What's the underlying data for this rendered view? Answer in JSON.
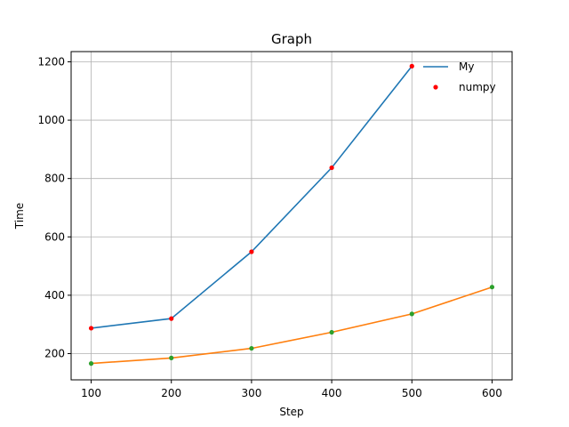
{
  "chart_data": {
    "type": "line",
    "title": "Graph",
    "xlabel": "Step",
    "ylabel": "Time",
    "xlim": [
      75,
      625
    ],
    "ylim": [
      110,
      1235
    ],
    "xticks": [
      100,
      200,
      300,
      400,
      500,
      600
    ],
    "yticks": [
      200,
      400,
      600,
      800,
      1000,
      1200
    ],
    "grid": true,
    "legend_position": "top-right",
    "legend": [
      {
        "label": "My",
        "marker": "line",
        "color": "#1f77b4"
      },
      {
        "label": "numpy",
        "marker": "dot",
        "color": "#ff0000"
      }
    ],
    "series": [
      {
        "name": "My",
        "color": "#1f77b4",
        "marker_color": "#ff0000",
        "x": [
          100,
          200,
          300,
          400,
          500
        ],
        "y": [
          287,
          320,
          549,
          837,
          1185
        ]
      },
      {
        "color": "#ff7f0e",
        "marker_color": "#2ca02c",
        "x": [
          100,
          200,
          300,
          400,
          500,
          600
        ],
        "y": [
          166,
          185,
          218,
          273,
          336,
          428
        ]
      }
    ]
  }
}
